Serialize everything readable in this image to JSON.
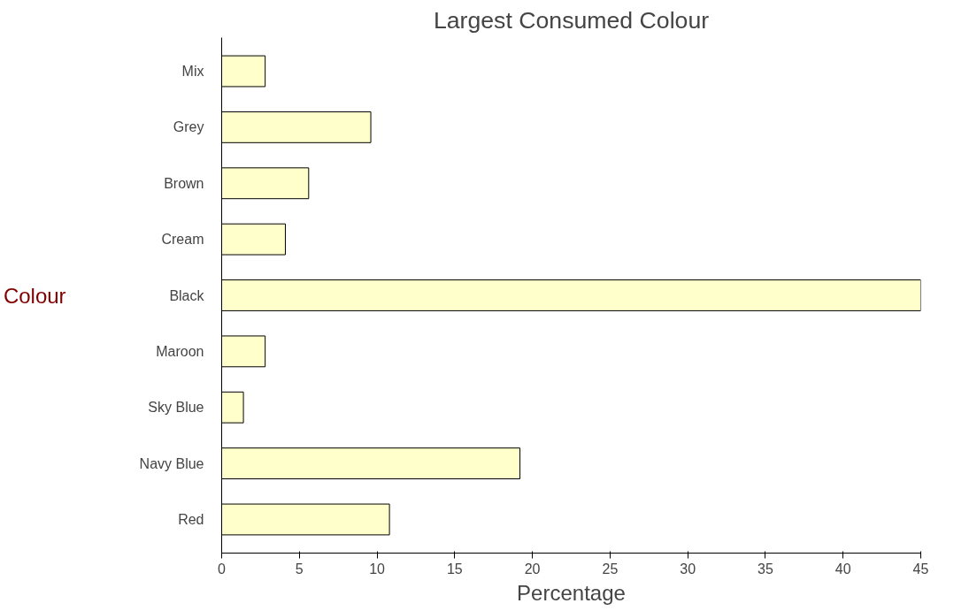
{
  "chart_data": {
    "type": "bar",
    "orientation": "horizontal",
    "title": "Largest Consumed Colour",
    "xlabel": "Percentage",
    "ylabel": "Colour",
    "categories": [
      "Mix",
      "Grey",
      "Brown",
      "Cream",
      "Black",
      "Maroon",
      "Sky Blue",
      "Navy Blue",
      "Red"
    ],
    "values": [
      2.8,
      9.6,
      5.6,
      4.1,
      45,
      2.8,
      1.4,
      19.2,
      10.8
    ],
    "color": "#ffffcc",
    "xlim": [
      0,
      45
    ],
    "xticks": [
      0,
      5,
      10,
      15,
      20,
      25,
      30,
      35,
      40,
      45
    ],
    "grid": false
  }
}
